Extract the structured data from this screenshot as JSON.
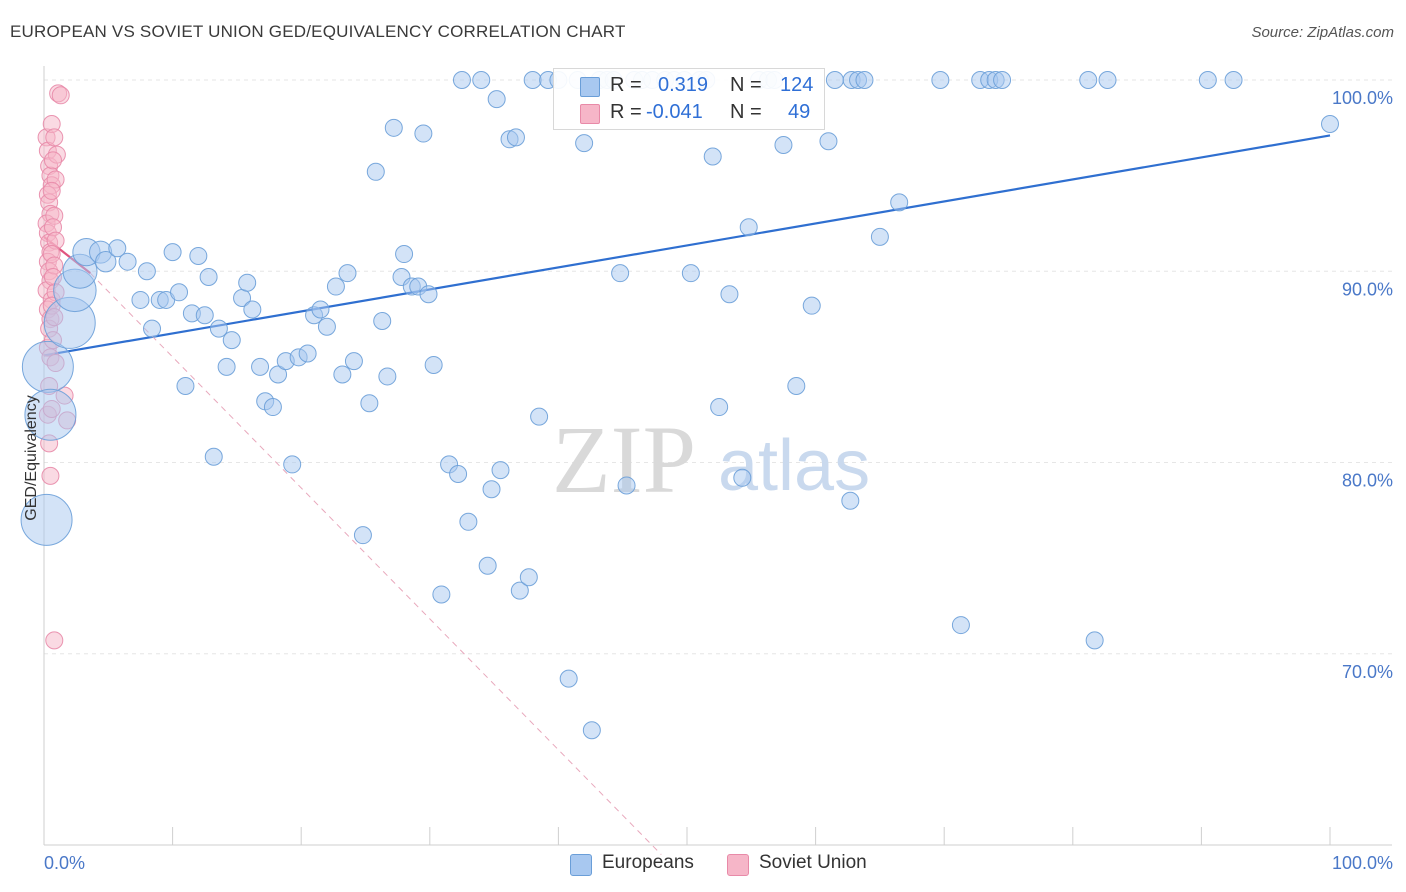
{
  "title": "EUROPEAN VS SOVIET UNION GED/EQUIVALENCY CORRELATION CHART",
  "source": "Source: ZipAtlas.com",
  "watermark": {
    "zip": "ZIP",
    "atlas": "atlas"
  },
  "legend": {
    "r_label": "R =",
    "n_label": "N =",
    "europeans": {
      "r": "0.319",
      "n": "124"
    },
    "soviet": {
      "r": "-0.041",
      "n": "49"
    }
  },
  "bottom_legend": {
    "europeans": "Europeans",
    "soviet": "Soviet Union"
  },
  "colors": {
    "europeans_fill": "#a8c8f0",
    "europeans_stroke": "#6a9ed8",
    "europeans_line": "#2f6fd0",
    "soviet_fill": "#f6b6c8",
    "soviet_stroke": "#e88aa8",
    "soviet_line": "#e0557f",
    "grid": "#e6e6e6",
    "axis_text": "#4a78c8"
  },
  "chart_data": {
    "type": "scatter",
    "xlabel": "",
    "ylabel": "GED/Equivalency",
    "xlim": [
      0,
      100
    ],
    "ylim": [
      60,
      100
    ],
    "x_tick_labels": [
      "0.0%",
      "100.0%"
    ],
    "y_ticks": [
      70,
      80,
      90,
      100
    ],
    "y_tick_labels": [
      "70.0%",
      "80.0%",
      "90.0%",
      "100.0%"
    ],
    "grid": true,
    "legend_placement": "top-center",
    "series": [
      {
        "name": "Europeans",
        "trend": {
          "x": [
            0,
            100
          ],
          "y": [
            85.6,
            97.1
          ]
        },
        "points": [
          [
            0.3,
            85.0,
            3
          ],
          [
            0.5,
            82.5,
            3
          ],
          [
            0.2,
            77.0,
            3
          ],
          [
            2.0,
            87.3,
            3
          ],
          [
            2.4,
            89.0,
            2.5
          ],
          [
            2.8,
            90.0,
            2
          ],
          [
            3.3,
            91.0,
            1.6
          ],
          [
            4.4,
            91.0,
            1.3
          ],
          [
            4.8,
            90.5,
            1.2
          ],
          [
            5.7,
            91.2,
            1
          ],
          [
            6.5,
            90.5,
            1
          ],
          [
            7.5,
            88.5,
            1
          ],
          [
            8.0,
            90.0,
            1
          ],
          [
            8.4,
            87.0,
            1
          ],
          [
            9.0,
            88.5,
            1
          ],
          [
            9.5,
            88.5,
            1
          ],
          [
            10.0,
            91.0,
            1
          ],
          [
            10.5,
            88.9,
            1
          ],
          [
            11.0,
            84.0,
            1
          ],
          [
            11.5,
            87.8,
            1
          ],
          [
            12.0,
            90.8,
            1
          ],
          [
            12.5,
            87.7,
            1
          ],
          [
            12.8,
            89.7,
            1
          ],
          [
            13.2,
            80.3,
            1
          ],
          [
            13.6,
            87.0,
            1
          ],
          [
            14.2,
            85.0,
            1
          ],
          [
            14.6,
            86.4,
            1
          ],
          [
            15.4,
            88.6,
            1
          ],
          [
            15.8,
            89.4,
            1
          ],
          [
            16.2,
            88.0,
            1
          ],
          [
            16.8,
            85.0,
            1
          ],
          [
            17.2,
            83.2,
            1
          ],
          [
            17.8,
            82.9,
            1
          ],
          [
            18.2,
            84.6,
            1
          ],
          [
            18.8,
            85.3,
            1
          ],
          [
            19.3,
            79.9,
            1
          ],
          [
            19.8,
            85.5,
            1
          ],
          [
            20.5,
            85.7,
            1
          ],
          [
            21.0,
            87.7,
            1
          ],
          [
            21.5,
            88.0,
            1
          ],
          [
            22.0,
            87.1,
            1
          ],
          [
            22.7,
            89.2,
            1
          ],
          [
            23.2,
            84.6,
            1
          ],
          [
            23.6,
            89.9,
            1
          ],
          [
            24.1,
            85.3,
            1
          ],
          [
            24.8,
            76.2,
            1
          ],
          [
            25.3,
            83.1,
            1
          ],
          [
            25.8,
            95.2,
            1
          ],
          [
            26.3,
            87.4,
            1
          ],
          [
            26.7,
            84.5,
            1
          ],
          [
            27.2,
            97.5,
            1
          ],
          [
            27.8,
            89.7,
            1
          ],
          [
            28.0,
            90.9,
            1
          ],
          [
            28.6,
            89.2,
            1
          ],
          [
            29.1,
            89.2,
            1
          ],
          [
            29.5,
            97.2,
            1
          ],
          [
            29.9,
            88.8,
            1
          ],
          [
            30.3,
            85.1,
            1
          ],
          [
            30.9,
            73.1,
            1
          ],
          [
            31.5,
            79.9,
            1
          ],
          [
            32.2,
            79.4,
            1
          ],
          [
            32.5,
            100,
            1
          ],
          [
            33.0,
            76.9,
            1
          ],
          [
            34.0,
            100,
            1
          ],
          [
            34.5,
            74.6,
            1
          ],
          [
            34.8,
            78.6,
            1
          ],
          [
            35.2,
            99.0,
            1
          ],
          [
            35.5,
            79.6,
            1
          ],
          [
            36.2,
            96.9,
            1
          ],
          [
            36.7,
            97.0,
            1
          ],
          [
            37.0,
            73.3,
            1
          ],
          [
            37.7,
            74.0,
            1
          ],
          [
            38.0,
            100,
            1
          ],
          [
            38.5,
            82.4,
            1
          ],
          [
            39.2,
            100,
            1
          ],
          [
            40.0,
            100,
            1
          ],
          [
            40.8,
            68.7,
            1
          ],
          [
            41.5,
            100,
            1
          ],
          [
            42.0,
            96.7,
            1
          ],
          [
            42.6,
            66.0,
            1
          ],
          [
            43.2,
            100,
            1
          ],
          [
            43.8,
            100,
            1
          ],
          [
            44.3,
            100,
            1
          ],
          [
            44.8,
            89.9,
            1
          ],
          [
            45.3,
            78.8,
            1
          ],
          [
            45.9,
            100,
            1
          ],
          [
            46.5,
            100,
            1
          ],
          [
            47.3,
            100,
            1
          ],
          [
            48.3,
            100,
            1
          ],
          [
            49.0,
            100,
            1
          ],
          [
            49.8,
            100,
            1
          ],
          [
            50.3,
            89.9,
            1
          ],
          [
            51.0,
            100,
            1
          ],
          [
            51.5,
            100,
            1
          ],
          [
            52.0,
            96.0,
            1
          ],
          [
            52.5,
            82.9,
            1
          ],
          [
            53.3,
            88.8,
            1
          ],
          [
            54.3,
            79.2,
            1
          ],
          [
            54.8,
            92.3,
            1
          ],
          [
            55.6,
            100,
            1
          ],
          [
            56.3,
            100,
            1
          ],
          [
            56.8,
            100,
            1
          ],
          [
            57.5,
            96.6,
            1
          ],
          [
            58.5,
            84.0,
            1
          ],
          [
            59.7,
            88.2,
            1
          ],
          [
            61.0,
            96.8,
            1
          ],
          [
            61.5,
            100,
            1
          ],
          [
            62.7,
            78.0,
            1
          ],
          [
            62.8,
            100,
            1
          ],
          [
            63.3,
            100,
            1
          ],
          [
            63.8,
            100,
            1
          ],
          [
            65.0,
            91.8,
            1
          ],
          [
            66.5,
            93.6,
            1
          ],
          [
            69.7,
            100,
            1
          ],
          [
            71.3,
            71.5,
            1
          ],
          [
            72.8,
            100,
            1
          ],
          [
            73.5,
            100,
            1
          ],
          [
            74.0,
            100,
            1
          ],
          [
            74.5,
            100,
            1
          ],
          [
            81.2,
            100,
            1
          ],
          [
            81.7,
            70.7,
            1
          ],
          [
            82.7,
            100,
            1
          ],
          [
            90.5,
            100,
            1
          ],
          [
            92.5,
            100,
            1
          ],
          [
            100,
            97.7,
            1
          ]
        ]
      },
      {
        "name": "Soviet Union",
        "trend": {
          "x": [
            0,
            3.6
          ],
          "y": [
            91.8,
            89.9
          ]
        },
        "extension": {
          "x": [
            3.6,
            48
          ],
          "y": [
            89.9,
            59.5
          ]
        },
        "points": [
          [
            0.2,
            97.0,
            1
          ],
          [
            0.3,
            96.3,
            1
          ],
          [
            0.4,
            95.5,
            1
          ],
          [
            0.5,
            95.0,
            1
          ],
          [
            0.6,
            94.5,
            1
          ],
          [
            0.3,
            94.0,
            1
          ],
          [
            0.4,
            93.6,
            1
          ],
          [
            0.5,
            93.0,
            1
          ],
          [
            0.2,
            92.5,
            1
          ],
          [
            0.3,
            92.0,
            1
          ],
          [
            0.4,
            91.5,
            1
          ],
          [
            0.5,
            91.0,
            1
          ],
          [
            0.3,
            90.5,
            1
          ],
          [
            0.4,
            90.0,
            1
          ],
          [
            0.5,
            89.5,
            1
          ],
          [
            0.2,
            89.0,
            1
          ],
          [
            0.6,
            88.5,
            1
          ],
          [
            0.3,
            88.0,
            1
          ],
          [
            0.5,
            87.5,
            1
          ],
          [
            0.4,
            87.0,
            1
          ],
          [
            0.3,
            86.0,
            1
          ],
          [
            0.5,
            85.5,
            1
          ],
          [
            0.4,
            84.0,
            1
          ],
          [
            0.3,
            82.5,
            1
          ],
          [
            0.4,
            81.0,
            1
          ],
          [
            0.5,
            79.3,
            1
          ],
          [
            0.8,
            70.7,
            1
          ],
          [
            1.1,
            99.3,
            1
          ],
          [
            1.3,
            99.2,
            1
          ],
          [
            0.6,
            97.7,
            1
          ],
          [
            0.8,
            97.0,
            1
          ],
          [
            1.0,
            96.1,
            1
          ],
          [
            0.7,
            95.8,
            1
          ],
          [
            0.9,
            94.8,
            1
          ],
          [
            0.6,
            94.2,
            1
          ],
          [
            0.8,
            92.9,
            1
          ],
          [
            0.7,
            92.3,
            1
          ],
          [
            0.9,
            91.6,
            1
          ],
          [
            0.6,
            90.9,
            1
          ],
          [
            0.8,
            90.3,
            1
          ],
          [
            0.7,
            89.7,
            1
          ],
          [
            0.9,
            88.9,
            1
          ],
          [
            0.6,
            88.2,
            1
          ],
          [
            0.8,
            87.6,
            1
          ],
          [
            0.7,
            86.4,
            1
          ],
          [
            0.9,
            85.2,
            1
          ],
          [
            1.6,
            83.5,
            1
          ],
          [
            1.8,
            82.2,
            1
          ],
          [
            0.6,
            82.8,
            1
          ]
        ]
      }
    ]
  }
}
